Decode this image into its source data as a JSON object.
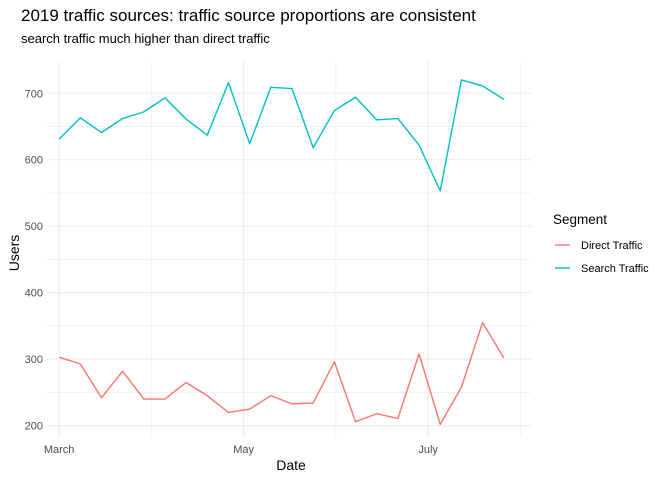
{
  "chart_data": {
    "type": "line",
    "title": "2019 traffic sources: traffic source proportions are consistent",
    "subtitle": "search traffic much higher than direct traffic",
    "xlabel": "Date",
    "ylabel": "Users",
    "x_tick_labels": [
      "March",
      "May",
      "July"
    ],
    "x_tick_dates": [
      "2019-03-01",
      "2019-05-01",
      "2019-07-01"
    ],
    "y_ticks": [
      200,
      300,
      400,
      500,
      600,
      700
    ],
    "ylim": [
      183,
      747
    ],
    "xlim": [
      "2019-02-25",
      "2019-08-04"
    ],
    "grid": true,
    "legend_title": "Segment",
    "legend_position": "right",
    "dates": [
      "2019-03-01",
      "2019-03-08",
      "2019-03-15",
      "2019-03-22",
      "2019-03-29",
      "2019-04-05",
      "2019-04-12",
      "2019-04-19",
      "2019-04-26",
      "2019-05-03",
      "2019-05-10",
      "2019-05-17",
      "2019-05-24",
      "2019-05-31",
      "2019-06-07",
      "2019-06-14",
      "2019-06-21",
      "2019-06-28",
      "2019-07-05",
      "2019-07-12",
      "2019-07-19",
      "2019-07-26"
    ],
    "series": [
      {
        "name": "Direct Traffic",
        "color": "#F8766D",
        "values": [
          303,
          293,
          242,
          282,
          240,
          240,
          265,
          245,
          220,
          225,
          245,
          233,
          234,
          296,
          206,
          218,
          211,
          308,
          202,
          258,
          355,
          302
        ]
      },
      {
        "name": "Search Traffic",
        "color": "#00BFC4",
        "values": [
          631,
          663,
          641,
          662,
          672,
          693,
          661,
          637,
          716,
          624,
          709,
          707,
          618,
          674,
          694,
          660,
          662,
          622,
          553,
          720,
          711,
          691
        ]
      }
    ]
  }
}
